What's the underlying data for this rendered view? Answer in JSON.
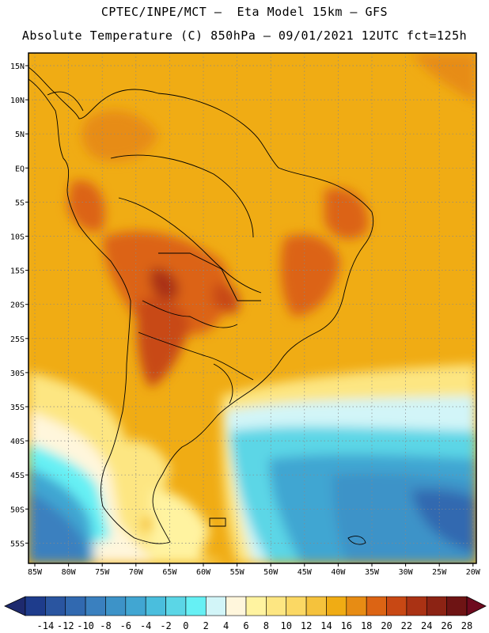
{
  "header": {
    "line1": "CPTEC/INPE/MCT –  Eta Model 15km – GFS",
    "line2": "Absolute Temperature (C) 850hPa – 09/01/2021 12UTC fct=125h"
  },
  "map": {
    "lat_ticks": [
      "15N",
      "10N",
      "5N",
      "EQ",
      "5S",
      "10S",
      "15S",
      "20S",
      "25S",
      "30S",
      "35S",
      "40S",
      "45S",
      "50S",
      "55S"
    ],
    "lon_ticks": [
      "85W",
      "80W",
      "75W",
      "70W",
      "65W",
      "60W",
      "55W",
      "50W",
      "45W",
      "40W",
      "35W",
      "30W",
      "25W",
      "20W"
    ]
  },
  "colorbar": {
    "labels": [
      "-14",
      "-12",
      "-10",
      "-8",
      "-6",
      "-4",
      "-2",
      "0",
      "2",
      "4",
      "6",
      "8",
      "10",
      "12",
      "14",
      "16",
      "18",
      "20",
      "22",
      "24",
      "26",
      "28"
    ],
    "colors": [
      "#1e3c8c",
      "#2a55a0",
      "#3169b0",
      "#3a80bf",
      "#3d93c8",
      "#41a6d2",
      "#4abedd",
      "#5bd6e6",
      "#66f0f4",
      "#d2f5f8",
      "#fff6dc",
      "#fff3a0",
      "#fde682",
      "#fbd864",
      "#f5c23c",
      "#f0ac14",
      "#e78c14",
      "#dc6414",
      "#c84814",
      "#aa3214",
      "#8c2314",
      "#6e1414"
    ],
    "low_arrow_color": "#1e2a6e",
    "high_arrow_color": "#6e0a1e"
  }
}
